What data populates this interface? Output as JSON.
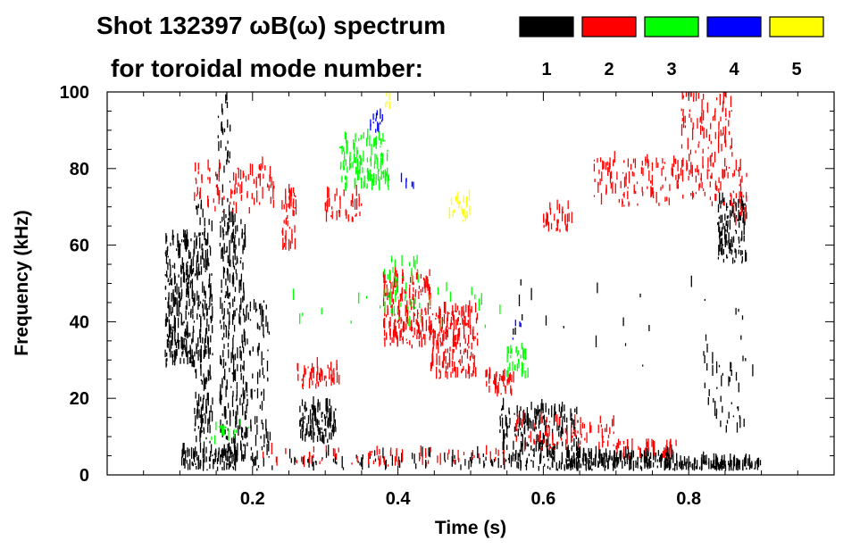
{
  "chart_data": {
    "type": "scatter",
    "title_line1": "Shot 132397 ωB(ω) spectrum",
    "title_line2": "for toroidal mode number:",
    "xlabel": "Time (s)",
    "ylabel": "Frequency (kHz)",
    "xlim": [
      0.0,
      1.0
    ],
    "ylim": [
      0,
      100
    ],
    "x_ticks": [
      0.2,
      0.4,
      0.6,
      0.8
    ],
    "x_tick_labels": [
      "0.2",
      "0.4",
      "0.6",
      "0.8"
    ],
    "y_ticks": [
      0,
      20,
      40,
      60,
      80,
      100
    ],
    "y_tick_labels": [
      "0",
      "20",
      "40",
      "60",
      "80",
      "100"
    ],
    "legend": [
      {
        "label": "1",
        "color": "#000000"
      },
      {
        "label": "2",
        "color": "#ff0000"
      },
      {
        "label": "3",
        "color": "#00ff00"
      },
      {
        "label": "4",
        "color": "#0000ff"
      },
      {
        "label": "5",
        "color": "#ffff00"
      }
    ],
    "series": [
      {
        "name": "1",
        "color": "#000000",
        "regions": [
          {
            "t": [
              0.08,
              0.12
            ],
            "f": [
              28,
              62
            ],
            "density": 260
          },
          {
            "t": [
              0.12,
              0.145
            ],
            "f": [
              8,
              70
            ],
            "density": 200
          },
          {
            "t": [
              0.155,
              0.19
            ],
            "f": [
              1,
              68
            ],
            "density": 280
          },
          {
            "t": [
              0.19,
              0.225
            ],
            "f": [
              2,
              45
            ],
            "density": 90
          },
          {
            "t": [
              0.265,
              0.315
            ],
            "f": [
              8,
              18
            ],
            "density": 110
          },
          {
            "t": [
              0.1,
              0.18
            ],
            "f": [
              1,
              6
            ],
            "density": 90
          },
          {
            "t": [
              0.54,
              0.65
            ],
            "f": [
              1,
              17
            ],
            "density": 240
          },
          {
            "t": [
              0.63,
              0.78
            ],
            "f": [
              1,
              5
            ],
            "density": 200
          },
          {
            "t": [
              0.78,
              0.9
            ],
            "f": [
              1,
              3
            ],
            "density": 120
          },
          {
            "t": [
              0.84,
              0.88
            ],
            "f": [
              55,
              72
            ],
            "density": 120
          },
          {
            "t": [
              0.82,
              0.88
            ],
            "f": [
              10,
              30
            ],
            "density": 40
          },
          {
            "t": [
              0.55,
              0.9
            ],
            "f": [
              25,
              50
            ],
            "density": 25
          },
          {
            "t": [
              0.2,
              0.55
            ],
            "f": [
              1,
              5
            ],
            "density": 80
          },
          {
            "t": [
              0.15,
              0.17
            ],
            "f": [
              70,
              100
            ],
            "density": 30
          }
        ]
      },
      {
        "name": "2",
        "color": "#ff0000",
        "regions": [
          {
            "t": [
              0.12,
              0.23
            ],
            "f": [
              68,
              80
            ],
            "density": 90
          },
          {
            "t": [
              0.24,
              0.26
            ],
            "f": [
              58,
              74
            ],
            "density": 45
          },
          {
            "t": [
              0.3,
              0.35
            ],
            "f": [
              66,
              73
            ],
            "density": 40
          },
          {
            "t": [
              0.26,
              0.32
            ],
            "f": [
              22,
              28
            ],
            "density": 45
          },
          {
            "t": [
              0.38,
              0.445
            ],
            "f": [
              33,
              52
            ],
            "density": 200
          },
          {
            "t": [
              0.445,
              0.51
            ],
            "f": [
              25,
              43
            ],
            "density": 190
          },
          {
            "t": [
              0.52,
              0.56
            ],
            "f": [
              20,
              26
            ],
            "density": 40
          },
          {
            "t": [
              0.56,
              0.7
            ],
            "f": [
              6,
              14
            ],
            "density": 80
          },
          {
            "t": [
              0.7,
              0.79
            ],
            "f": [
              4,
              8
            ],
            "density": 40
          },
          {
            "t": [
              0.2,
              0.55
            ],
            "f": [
              2,
              6
            ],
            "density": 70
          },
          {
            "t": [
              0.6,
              0.64
            ],
            "f": [
              63,
              70
            ],
            "density": 35
          },
          {
            "t": [
              0.67,
              0.79
            ],
            "f": [
              70,
              82
            ],
            "density": 110
          },
          {
            "t": [
              0.79,
              0.86
            ],
            "f": [
              70,
              100
            ],
            "density": 150
          },
          {
            "t": [
              0.86,
              0.88
            ],
            "f": [
              65,
              80
            ],
            "density": 30
          }
        ]
      },
      {
        "name": "3",
        "color": "#00ff00",
        "regions": [
          {
            "t": [
              0.32,
              0.39
            ],
            "f": [
              74,
              88
            ],
            "density": 120
          },
          {
            "t": [
              0.38,
              0.43
            ],
            "f": [
              42,
              56
            ],
            "density": 45
          },
          {
            "t": [
              0.55,
              0.58
            ],
            "f": [
              25,
              33
            ],
            "density": 30
          },
          {
            "t": [
              0.14,
              0.2
            ],
            "f": [
              8,
              14
            ],
            "density": 15
          },
          {
            "t": [
              0.25,
              0.55
            ],
            "f": [
              38,
              48
            ],
            "density": 25
          }
        ]
      },
      {
        "name": "4",
        "color": "#0000ff",
        "regions": [
          {
            "t": [
              0.36,
              0.38
            ],
            "f": [
              89,
              94
            ],
            "density": 14
          },
          {
            "t": [
              0.4,
              0.43
            ],
            "f": [
              74,
              78
            ],
            "density": 5
          },
          {
            "t": [
              0.55,
              0.58
            ],
            "f": [
              35,
              40
            ],
            "density": 5
          }
        ]
      },
      {
        "name": "5",
        "color": "#ffff00",
        "regions": [
          {
            "t": [
              0.47,
              0.5
            ],
            "f": [
              66,
              72
            ],
            "density": 22
          },
          {
            "t": [
              0.38,
              0.39
            ],
            "f": [
              95,
              99
            ],
            "density": 5
          }
        ]
      }
    ]
  }
}
